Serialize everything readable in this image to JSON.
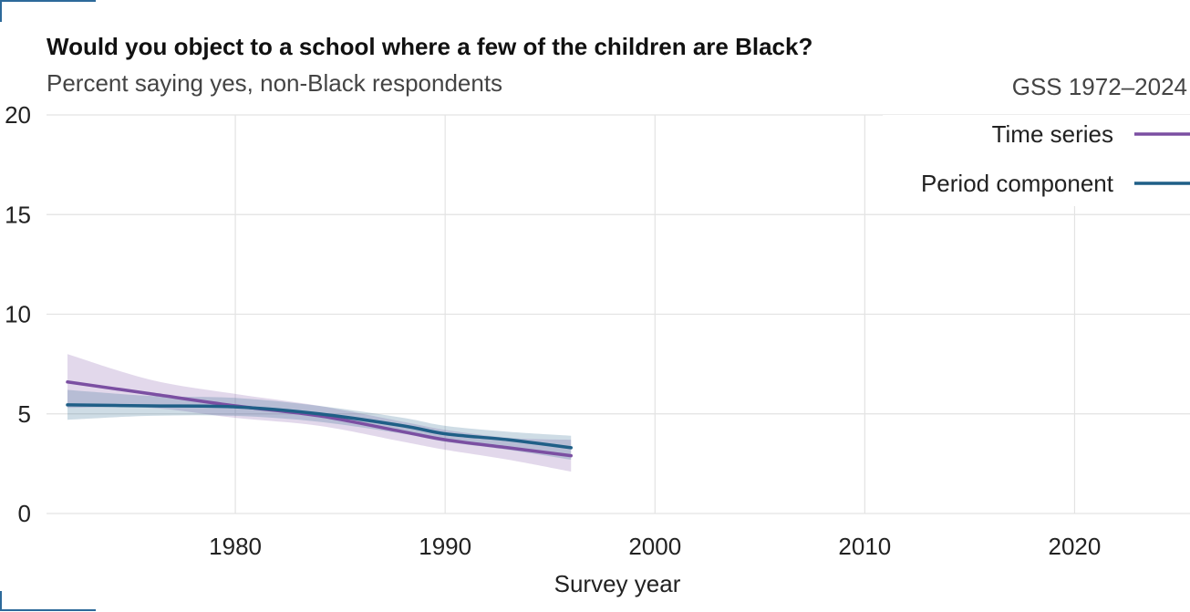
{
  "header": {
    "title": "Would you object to a school where a few of the children are Black?",
    "subtitle": "Percent saying yes, non-Black respondents",
    "source": "GSS 1972–2024"
  },
  "chart_data": {
    "type": "line",
    "title": "Would you object to a school where a few of the children are Black?",
    "subtitle": "Percent saying yes, non-Black respondents",
    "xlabel": "Survey year",
    "ylabel": "",
    "xlim": [
      1971,
      2025.5
    ],
    "ylim": [
      0,
      20
    ],
    "xticks": [
      1980,
      1990,
      2000,
      2010,
      2020
    ],
    "yticks": [
      0,
      5,
      10,
      15,
      20
    ],
    "grid": true,
    "legend": {
      "title": "GSS 1972–2024",
      "position": "top-right"
    },
    "series": [
      {
        "name": "Time series",
        "color": "#7b4fa2",
        "x": [
          1972,
          1976,
          1980,
          1984,
          1988,
          1990,
          1993,
          1996
        ],
        "y": [
          6.6,
          6.0,
          5.4,
          4.9,
          4.1,
          3.7,
          3.3,
          2.9
        ],
        "lower": [
          5.3,
          5.3,
          4.8,
          4.4,
          3.6,
          3.2,
          2.7,
          2.1
        ],
        "upper": [
          8.0,
          6.7,
          6.0,
          5.4,
          4.6,
          4.2,
          3.8,
          3.7
        ]
      },
      {
        "name": "Period component",
        "color": "#1f5f87",
        "x": [
          1972,
          1976,
          1980,
          1984,
          1988,
          1990,
          1993,
          1996
        ],
        "y": [
          5.45,
          5.4,
          5.35,
          5.0,
          4.4,
          4.0,
          3.7,
          3.3
        ],
        "lower": [
          4.7,
          4.9,
          4.9,
          4.6,
          4.0,
          3.6,
          3.2,
          2.7
        ],
        "upper": [
          6.2,
          5.9,
          5.8,
          5.4,
          4.8,
          4.4,
          4.1,
          3.9
        ]
      }
    ]
  }
}
